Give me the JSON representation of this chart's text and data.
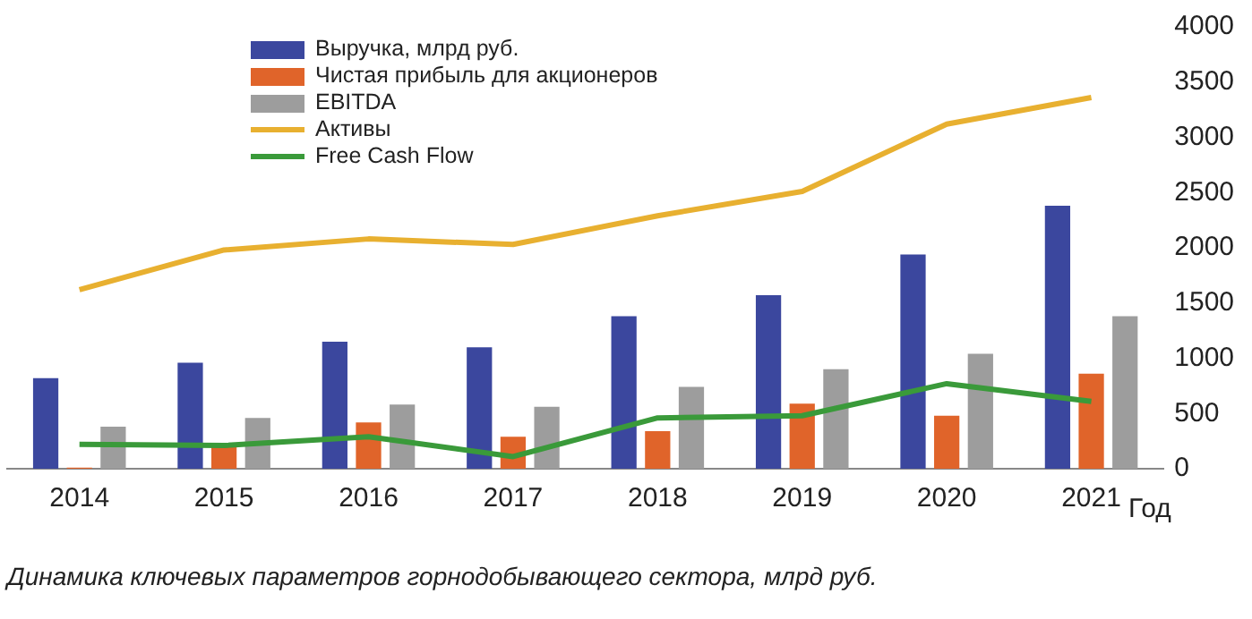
{
  "chart_data": {
    "type": "bar",
    "xlabel": "Год",
    "categories": [
      "2014",
      "2015",
      "2016",
      "2017",
      "2018",
      "2019",
      "2020",
      "2021"
    ],
    "series": [
      {
        "name": "Выручка, млрд руб.",
        "color": "#3b479e",
        "values": [
          820,
          960,
          1150,
          1100,
          1380,
          1570,
          1940,
          2380
        ]
      },
      {
        "name": "Чистая прибыль для акционеров",
        "color": "#e0642a",
        "values": [
          10,
          210,
          420,
          290,
          340,
          590,
          480,
          860
        ]
      },
      {
        "name": "EBITDA",
        "color": "#9d9d9d",
        "values": [
          380,
          460,
          580,
          560,
          740,
          900,
          1040,
          1380
        ]
      },
      {
        "name": "Активы",
        "type": "line",
        "color": "#e8b030",
        "values": [
          1620,
          1980,
          2080,
          2030,
          2290,
          2510,
          3120,
          3360
        ]
      },
      {
        "name": "Free Cash Flow",
        "type": "line",
        "color": "#3a9a3a",
        "values": [
          220,
          210,
          290,
          110,
          460,
          480,
          770,
          610
        ]
      }
    ],
    "ylim": [
      0,
      4000
    ],
    "yticks": [
      0,
      500,
      1000,
      1500,
      2000,
      2500,
      3000,
      3500,
      4000
    ],
    "grid": false,
    "legend": "top left",
    "marker": "none",
    "annotations": [
      "Динамика ключевых параметров горнодобывающего сектора, млрд руб."
    ]
  }
}
